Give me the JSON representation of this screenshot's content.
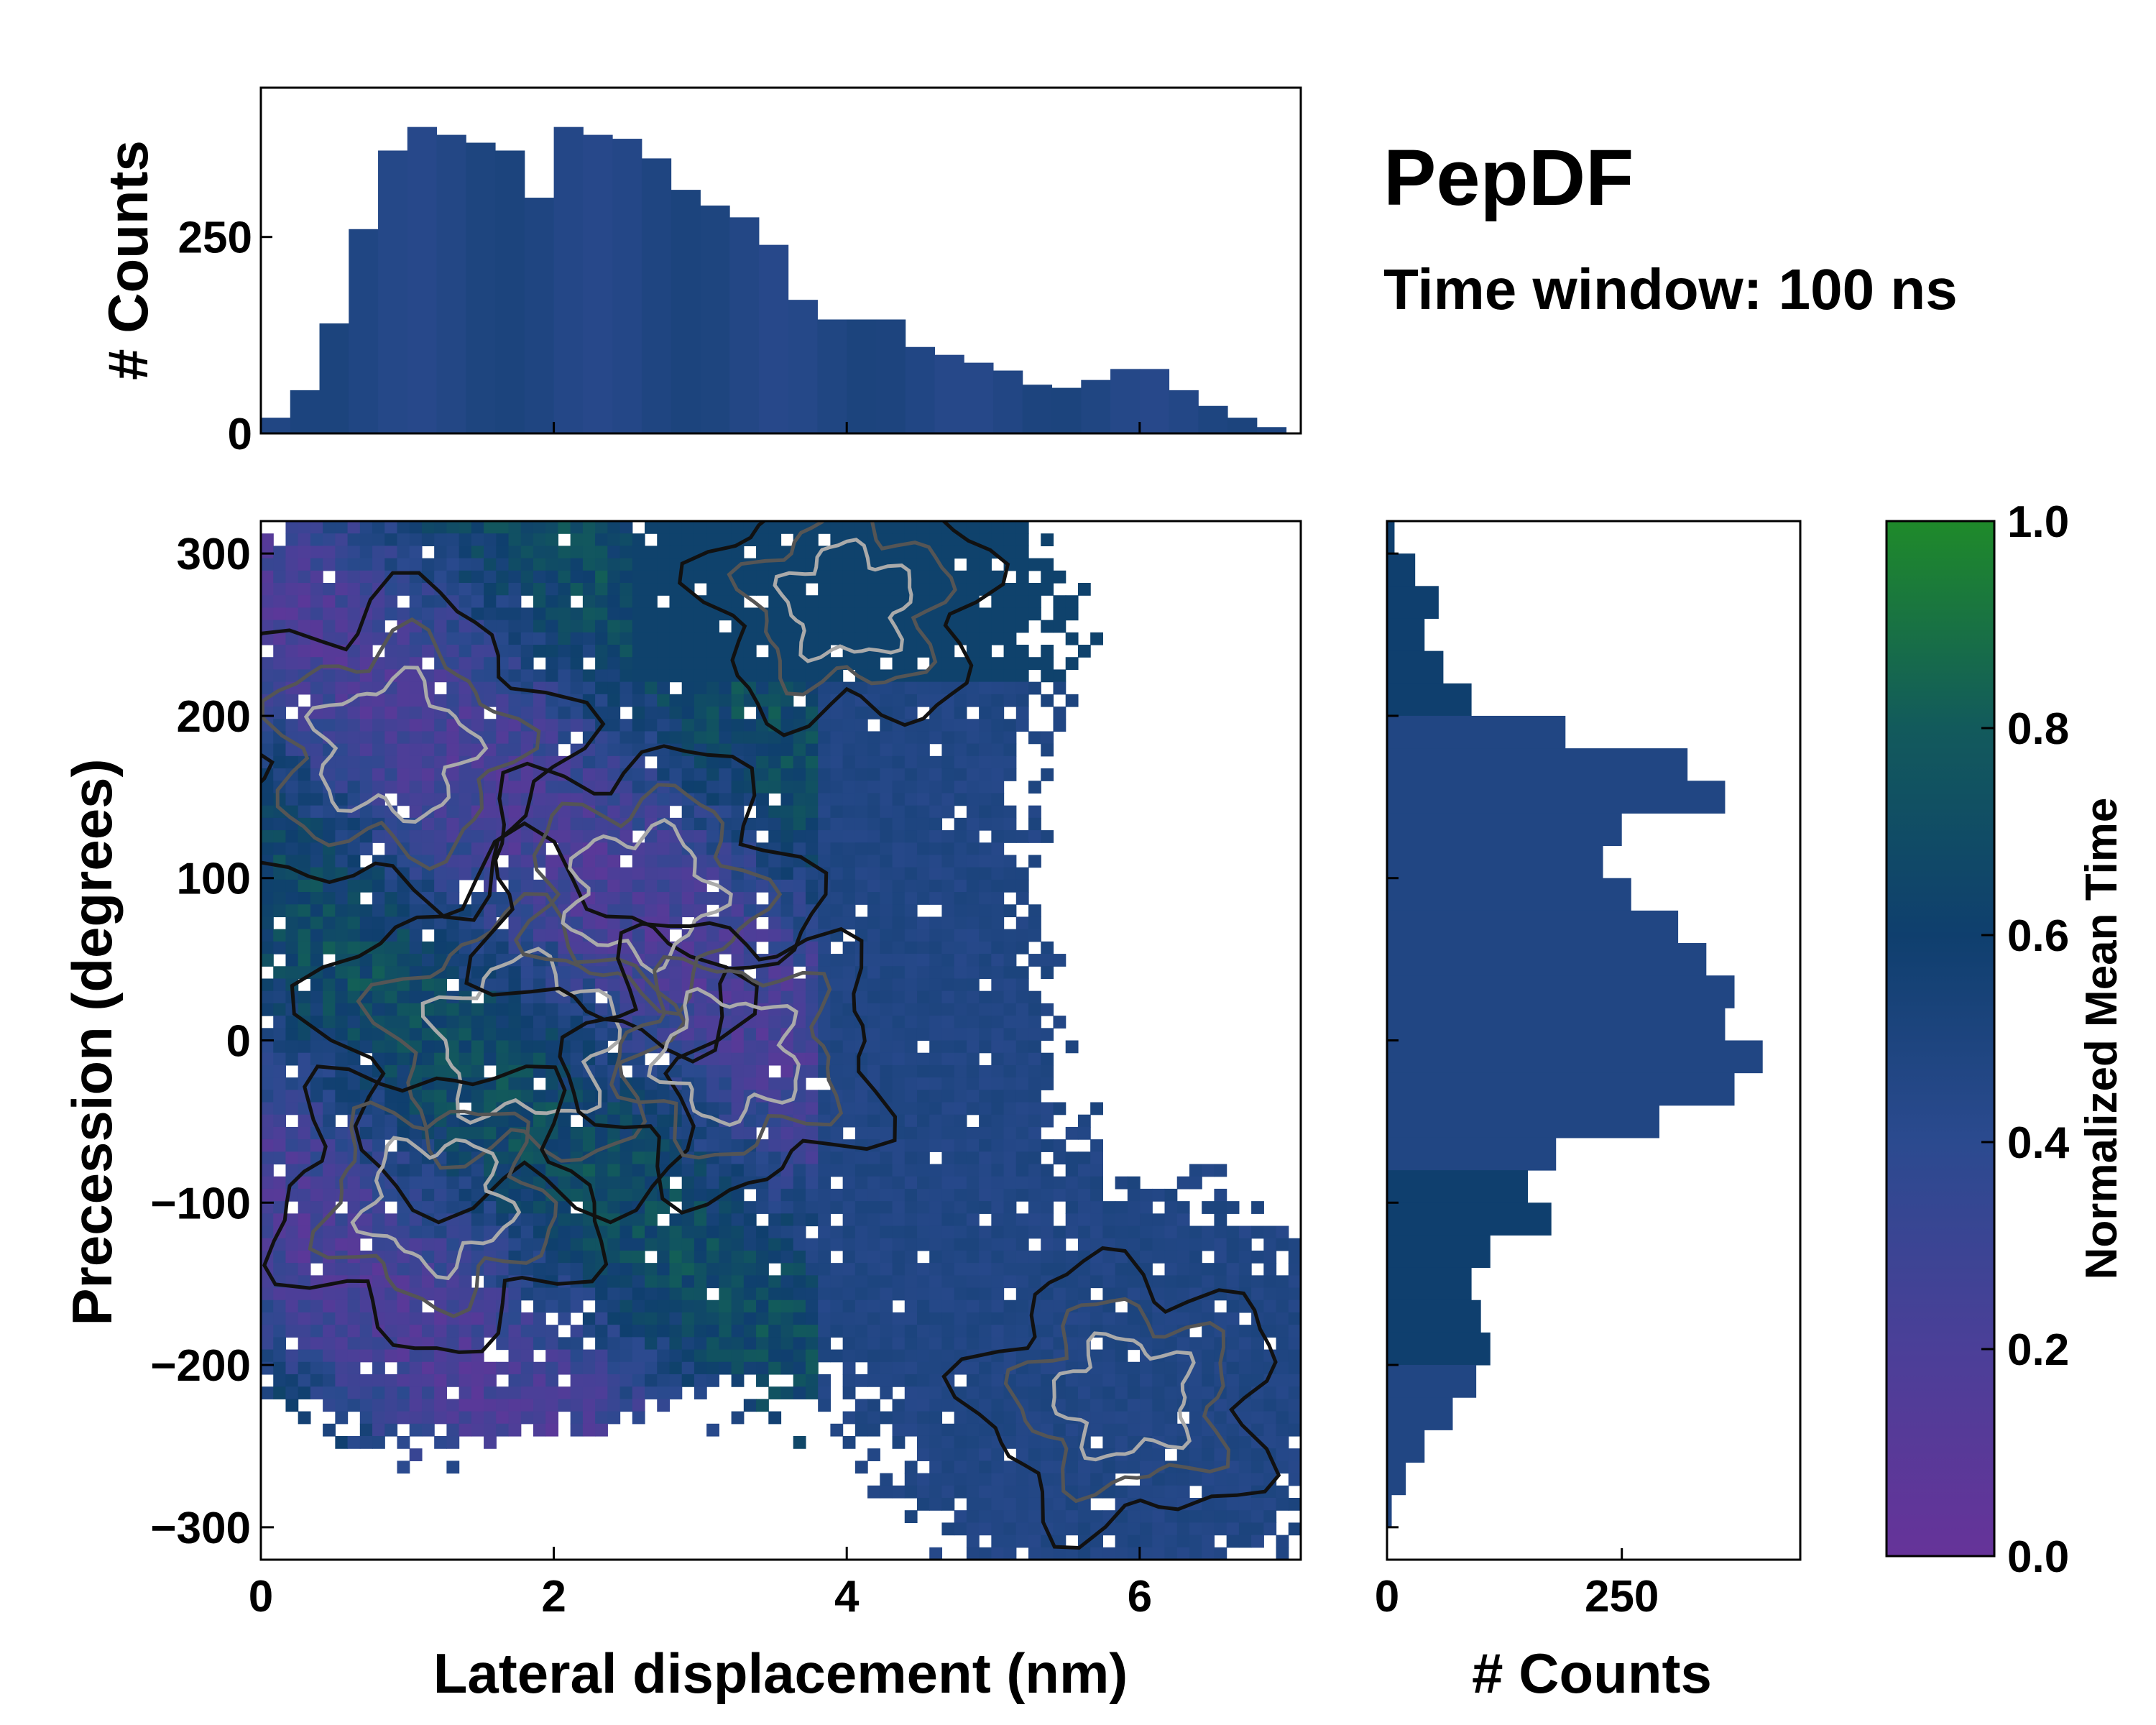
{
  "title": "PepDF",
  "subtitle": "Time window: 100 ns",
  "chart_data": [
    {
      "type": "heatmap",
      "name": "main",
      "xlabel": "Lateral displacement (nm)",
      "ylabel": "Precession (degrees)",
      "xlim": [
        0,
        7.1
      ],
      "ylim": [
        -320,
        320
      ],
      "xticks": [
        0,
        2,
        4,
        6
      ],
      "xtick_labels": [
        "0",
        "2",
        "4",
        "6"
      ],
      "yticks": [
        300,
        200,
        100,
        0,
        -100,
        -200,
        -300
      ],
      "ytick_labels": [
        "300",
        "200",
        "100",
        "0",
        "−100",
        "−200",
        "−300"
      ],
      "color_variable": "Normalized Mean Time",
      "density_modes": [
        {
          "x": 1.8,
          "y": 0,
          "weight": 1.0
        },
        {
          "x": 0.9,
          "y": 180,
          "weight": 0.7
        },
        {
          "x": 2.6,
          "y": 90,
          "weight": 0.6
        },
        {
          "x": 1.2,
          "y": -100,
          "weight": 0.55
        },
        {
          "x": 3.2,
          "y": -10,
          "weight": 0.5
        },
        {
          "x": 5.9,
          "y": -220,
          "weight": 0.45
        },
        {
          "x": 4.0,
          "y": 270,
          "weight": 0.35
        }
      ]
    },
    {
      "type": "bar",
      "name": "top-histogram",
      "ylabel": "# Counts",
      "xlim": [
        0,
        7.1
      ],
      "ylim": [
        0,
        440
      ],
      "yticks": [
        0,
        250
      ],
      "ytick_labels": [
        "0",
        "250"
      ],
      "x": [
        0.1,
        0.3,
        0.5,
        0.7,
        0.9,
        1.1,
        1.3,
        1.5,
        1.7,
        1.9,
        2.1,
        2.3,
        2.5,
        2.7,
        2.9,
        3.1,
        3.3,
        3.5,
        3.7,
        3.9,
        4.1,
        4.3,
        4.5,
        4.7,
        4.9,
        5.1,
        5.3,
        5.5,
        5.7,
        5.9,
        6.1,
        6.3,
        6.5,
        6.7,
        6.9
      ],
      "values": [
        20,
        55,
        140,
        260,
        360,
        390,
        380,
        370,
        360,
        300,
        390,
        380,
        375,
        350,
        310,
        290,
        275,
        240,
        170,
        145,
        145,
        145,
        110,
        100,
        90,
        80,
        62,
        58,
        68,
        82,
        82,
        55,
        35,
        20,
        8
      ]
    },
    {
      "type": "bar",
      "orientation": "horizontal",
      "name": "right-histogram",
      "xlabel": "# Counts",
      "xlim": [
        0,
        440
      ],
      "xticks": [
        0,
        250
      ],
      "xtick_labels": [
        "0",
        "250"
      ],
      "y": [
        310,
        290,
        270,
        250,
        230,
        210,
        190,
        170,
        150,
        130,
        110,
        90,
        70,
        50,
        30,
        10,
        -10,
        -30,
        -50,
        -70,
        -90,
        -110,
        -130,
        -150,
        -170,
        -190,
        -210,
        -230,
        -250,
        -270,
        -290,
        -310
      ],
      "values": [
        8,
        30,
        55,
        40,
        60,
        90,
        190,
        320,
        360,
        250,
        230,
        260,
        310,
        340,
        370,
        360,
        400,
        370,
        290,
        180,
        150,
        175,
        110,
        90,
        100,
        110,
        95,
        70,
        40,
        20,
        5,
        0
      ]
    },
    {
      "type": "colorbar",
      "name": "colorbar",
      "label": "Normalized Mean Time",
      "range": [
        0.0,
        1.0
      ],
      "ticks": [
        0.0,
        0.2,
        0.4,
        0.6,
        0.8,
        1.0
      ],
      "tick_labels": [
        "0.0",
        "0.2",
        "0.4",
        "0.6",
        "0.8",
        "1.0"
      ],
      "colors": [
        "#663399",
        "#4b3f98",
        "#2b4a8f",
        "#0f3f6e",
        "#125a5c",
        "#1f8a2a"
      ]
    }
  ]
}
